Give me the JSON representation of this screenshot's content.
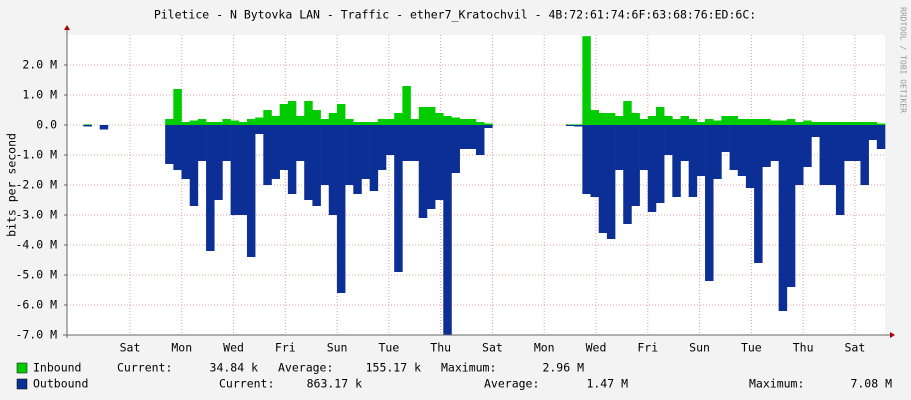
{
  "chart_data": {
    "type": "bar",
    "title": "Piletice - N Bytovka LAN - Traffic - ether7_Kratochvil - 4B:72:61:74:6F:63:68:76:ED:6C:",
    "y_label": "bits per second",
    "watermark": "RRDTOOL / TOBI OETIKER",
    "x": [
      0,
      1,
      2,
      3,
      4,
      5,
      6,
      7,
      8,
      9,
      10,
      11,
      12,
      13,
      14,
      15,
      16,
      17,
      18,
      19,
      20,
      21,
      22,
      23,
      24,
      25,
      26,
      27,
      28,
      29,
      30,
      31,
      32,
      33,
      34,
      35,
      36,
      37,
      38,
      39,
      40,
      41,
      42,
      43,
      44,
      45,
      46,
      47,
      48,
      49,
      50,
      51,
      52,
      53,
      54,
      55,
      56,
      57,
      58,
      59,
      60,
      61,
      62,
      63,
      64,
      65,
      66,
      67,
      68,
      69,
      70,
      71,
      72,
      73,
      74,
      75,
      76,
      77,
      78,
      79,
      80,
      81,
      82,
      83,
      84,
      85,
      86,
      87,
      88,
      89,
      90,
      91,
      92,
      93,
      94,
      95,
      96,
      97,
      98,
      99
    ],
    "xlim": [
      0,
      100
    ],
    "xticks": [
      {
        "value": 7.7,
        "label": "Sat"
      },
      {
        "value": 14.03,
        "label": "Mon"
      },
      {
        "value": 20.36,
        "label": "Wed"
      },
      {
        "value": 26.69,
        "label": "Fri"
      },
      {
        "value": 33.02,
        "label": "Sun"
      },
      {
        "value": 39.35,
        "label": "Tue"
      },
      {
        "value": 45.68,
        "label": "Thu"
      },
      {
        "value": 52.01,
        "label": "Sat"
      },
      {
        "value": 58.34,
        "label": "Mon"
      },
      {
        "value": 64.67,
        "label": "Wed"
      },
      {
        "value": 71.0,
        "label": "Fri"
      },
      {
        "value": 77.33,
        "label": "Sun"
      },
      {
        "value": 83.66,
        "label": "Tue"
      },
      {
        "value": 89.99,
        "label": "Thu"
      },
      {
        "value": 96.32,
        "label": "Sat"
      }
    ],
    "ylim": [
      -7,
      3
    ],
    "yticks": [
      {
        "value": 2,
        "label": "2.0 M"
      },
      {
        "value": 1,
        "label": "1.0 M"
      },
      {
        "value": 0,
        "label": "0.0"
      },
      {
        "value": -1,
        "label": "-1.0 M"
      },
      {
        "value": -2,
        "label": "-2.0 M"
      },
      {
        "value": -3,
        "label": "-3.0 M"
      },
      {
        "value": -4,
        "label": "-4.0 M"
      },
      {
        "value": -5,
        "label": "-5.0 M"
      },
      {
        "value": -6,
        "label": "-6.0 M"
      },
      {
        "value": -7,
        "label": "-7.0 M"
      }
    ],
    "grid": true,
    "series": [
      {
        "name": "Inbound",
        "color": "#00cc00",
        "stats": [
          {
            "label": "Current:",
            "value": "34.84 k"
          },
          {
            "label": "Average:",
            "value": "155.17 k"
          },
          {
            "label": "Maximum:",
            "value": "2.96 M"
          }
        ],
        "values": [
          null,
          null,
          0.02,
          null,
          0,
          null,
          null,
          null,
          null,
          null,
          null,
          null,
          0.2,
          1.2,
          0.1,
          0.15,
          0.2,
          0.1,
          0.1,
          0.2,
          0.15,
          0.1,
          0.2,
          0.25,
          0.5,
          0.3,
          0.7,
          0.8,
          0.3,
          0.8,
          0.5,
          0.2,
          0.4,
          0.7,
          0.2,
          0.1,
          0.1,
          0.1,
          0.2,
          0.2,
          0.4,
          1.3,
          0.2,
          0.6,
          0.6,
          0.4,
          0.3,
          0.25,
          0.2,
          0.2,
          0.1,
          0.05,
          null,
          null,
          null,
          null,
          null,
          null,
          null,
          null,
          null,
          0.02,
          0.02,
          2.96,
          0.5,
          0.4,
          0.4,
          0.3,
          0.8,
          0.4,
          0.2,
          0.3,
          0.6,
          0.3,
          0.2,
          0.3,
          0.2,
          0.1,
          0.2,
          0.15,
          0.3,
          0.3,
          0.2,
          0.2,
          0.2,
          0.2,
          0.15,
          0.15,
          0.2,
          0.1,
          0.15,
          0.1,
          0.1,
          0.1,
          0.1,
          0.1,
          0.1,
          0.1,
          0.1,
          0.05
        ]
      },
      {
        "name": "Outbound",
        "color": "#0c2f96",
        "stats": [
          {
            "label": "Current:",
            "value": "863.17 k"
          },
          {
            "label": "Average:",
            "value": "1.47 M"
          },
          {
            "label": "Maximum:",
            "value": "7.08 M"
          }
        ],
        "values": [
          null,
          null,
          -0.05,
          null,
          -0.15,
          null,
          null,
          null,
          null,
          null,
          null,
          null,
          -1.3,
          -1.5,
          -1.8,
          -2.7,
          -1.2,
          -4.2,
          -2.5,
          -1.2,
          -3.0,
          -3.0,
          -4.4,
          -0.3,
          -2.0,
          -1.8,
          -1.5,
          -2.3,
          -1.2,
          -2.5,
          -2.7,
          -2.0,
          -3.0,
          -5.6,
          -2.0,
          -2.3,
          -1.8,
          -2.2,
          -1.5,
          -1.0,
          -4.9,
          -1.2,
          -1.2,
          -3.1,
          -2.8,
          -2.5,
          -7.0,
          -1.6,
          -0.8,
          -0.8,
          -1.0,
          -0.1,
          null,
          null,
          null,
          null,
          null,
          null,
          null,
          null,
          null,
          -0.03,
          -0.05,
          -2.3,
          -2.4,
          -3.6,
          -3.8,
          -1.5,
          -3.3,
          -2.7,
          -1.5,
          -2.9,
          -2.6,
          -1.0,
          -2.4,
          -1.2,
          -2.4,
          -1.7,
          -5.2,
          -1.8,
          -0.9,
          -1.5,
          -1.7,
          -2.1,
          -4.6,
          -1.4,
          -1.2,
          -6.2,
          -5.4,
          -2.0,
          -1.4,
          -0.4,
          -2.0,
          -2.0,
          -3.0,
          -1.2,
          -1.2,
          -2.0,
          -0.5,
          -0.8
        ]
      }
    ]
  }
}
